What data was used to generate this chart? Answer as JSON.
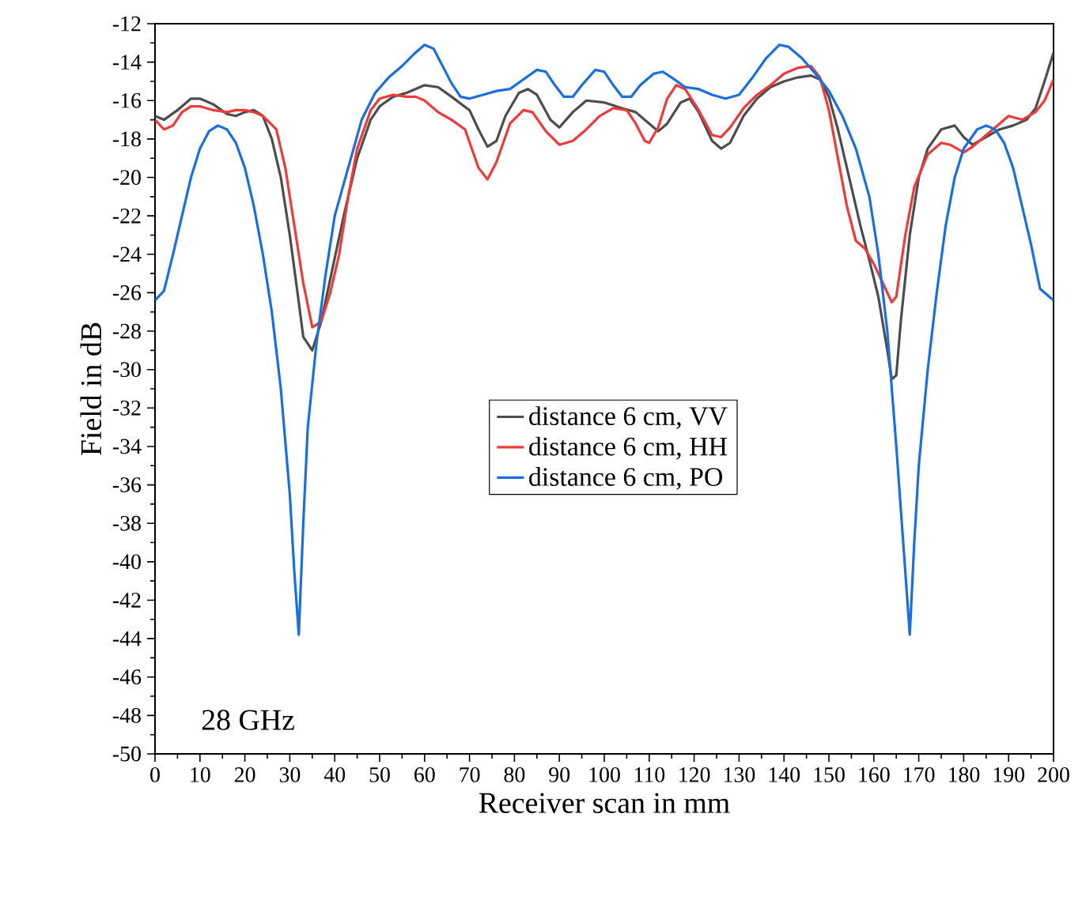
{
  "chart_data": {
    "type": "line",
    "xlabel": "Receiver scan in mm",
    "ylabel": "Field in dB",
    "xlim": [
      0,
      200
    ],
    "ylim": [
      -50,
      -12
    ],
    "xticks": [
      0,
      10,
      20,
      30,
      40,
      50,
      60,
      70,
      80,
      90,
      100,
      110,
      120,
      130,
      140,
      150,
      160,
      170,
      180,
      190,
      200
    ],
    "yticks": [
      -50,
      -48,
      -46,
      -44,
      -42,
      -40,
      -38,
      -36,
      -34,
      -32,
      -30,
      -28,
      -26,
      -24,
      -22,
      -20,
      -18,
      -16,
      -14,
      -12
    ],
    "legend": "center",
    "grid": false,
    "marker": "none",
    "line_style": "solid",
    "annotations": [
      "28 GHz"
    ],
    "series": [
      {
        "name": "distance 6 cm, VV",
        "color": "#4d4d4d",
        "x": [
          0,
          2,
          5,
          8,
          10,
          13,
          16,
          18,
          20,
          22,
          24,
          26,
          28,
          30,
          32,
          33,
          35,
          37,
          42,
          45,
          48,
          50,
          53,
          56,
          60,
          63,
          66,
          70,
          72,
          74,
          76,
          78,
          81,
          83,
          85,
          88,
          90,
          93,
          96,
          100,
          104,
          107,
          110,
          112,
          114,
          117,
          119,
          121,
          124,
          126,
          128,
          131,
          134,
          137,
          140,
          143,
          146,
          148,
          150,
          152,
          155,
          157,
          159,
          161,
          163,
          164,
          165,
          166,
          168,
          170,
          172,
          175,
          178,
          180,
          182,
          185,
          188,
          191,
          194,
          196,
          198,
          200
        ],
        "values": [
          -16.8,
          -17.0,
          -16.5,
          -15.9,
          -15.9,
          -16.2,
          -16.7,
          -16.8,
          -16.6,
          -16.5,
          -16.8,
          -18,
          -20,
          -23,
          -26.5,
          -28.3,
          -29,
          -27.5,
          -22,
          -19,
          -17,
          -16.3,
          -15.8,
          -15.6,
          -15.2,
          -15.3,
          -15.8,
          -16.5,
          -17.5,
          -18.4,
          -18.1,
          -16.8,
          -15.6,
          -15.4,
          -15.7,
          -17,
          -17.4,
          -16.6,
          -16.0,
          -16.1,
          -16.4,
          -16.6,
          -17.2,
          -17.6,
          -17.2,
          -16.1,
          -15.9,
          -16.6,
          -18.1,
          -18.5,
          -18.2,
          -16.8,
          -15.9,
          -15.3,
          -15.0,
          -14.8,
          -14.7,
          -14.9,
          -15.8,
          -17.5,
          -20.5,
          -22.5,
          -24.3,
          -26.2,
          -29,
          -30.5,
          -30.3,
          -27.5,
          -23,
          -20,
          -18.5,
          -17.5,
          -17.3,
          -17.9,
          -18.3,
          -17.9,
          -17.5,
          -17.3,
          -17,
          -16.4,
          -15,
          -13.5
        ]
      },
      {
        "name": "distance 6 cm, HH",
        "color": "#f03a3a",
        "x": [
          0,
          2,
          4,
          6,
          8,
          10,
          13,
          16,
          18,
          20,
          22,
          24,
          27,
          29,
          31,
          33,
          35,
          37,
          39,
          41,
          43,
          45,
          48,
          50,
          53,
          56,
          58,
          60,
          63,
          66,
          69,
          72,
          74,
          76,
          79,
          82,
          84,
          87,
          90,
          93,
          96,
          99,
          102,
          105,
          107,
          109,
          110,
          112,
          114,
          116,
          118,
          121,
          124,
          126,
          128,
          131,
          134,
          137,
          140,
          143,
          146,
          148,
          150,
          152,
          154,
          156,
          158,
          160,
          162,
          164,
          165,
          167,
          169,
          172,
          175,
          177,
          180,
          182,
          185,
          188,
          190,
          193,
          196,
          198,
          200
        ],
        "values": [
          -17.0,
          -17.5,
          -17.3,
          -16.6,
          -16.3,
          -16.3,
          -16.5,
          -16.6,
          -16.5,
          -16.5,
          -16.6,
          -16.8,
          -17.5,
          -19.5,
          -22.5,
          -25.5,
          -27.8,
          -27.5,
          -26,
          -24,
          -21,
          -18.5,
          -16.5,
          -15.9,
          -15.7,
          -15.8,
          -15.8,
          -16.0,
          -16.6,
          -17.0,
          -17.5,
          -19.5,
          -20.1,
          -19.2,
          -17.2,
          -16.5,
          -16.6,
          -17.6,
          -18.3,
          -18.1,
          -17.5,
          -16.8,
          -16.4,
          -16.5,
          -17.2,
          -18.1,
          -18.2,
          -17.4,
          -15.9,
          -15.2,
          -15.4,
          -16.5,
          -17.8,
          -17.9,
          -17.4,
          -16.4,
          -15.7,
          -15.2,
          -14.6,
          -14.3,
          -14.2,
          -14.8,
          -16.5,
          -19,
          -21.5,
          -23.3,
          -23.7,
          -24.5,
          -25.5,
          -26.5,
          -26.2,
          -23,
          -20.5,
          -18.8,
          -18.2,
          -18.3,
          -18.7,
          -18.4,
          -17.8,
          -17.2,
          -16.8,
          -17,
          -16.6,
          -16,
          -14.9
        ]
      },
      {
        "name": "distance 6 cm, PO",
        "color": "#1a6fe0",
        "x": [
          0,
          2,
          4,
          6,
          8,
          10,
          12,
          14,
          16,
          18,
          20,
          22,
          24,
          26,
          28,
          30,
          31,
          32,
          33,
          34,
          36,
          38,
          40,
          43,
          46,
          49,
          52,
          55,
          58,
          60,
          62,
          64,
          66,
          68,
          70,
          73,
          76,
          79,
          82,
          85,
          87,
          89,
          91,
          93,
          95,
          98,
          100,
          102,
          104,
          106,
          108,
          111,
          113,
          115,
          118,
          121,
          124,
          127,
          130,
          133,
          136,
          139,
          141,
          144,
          147,
          150,
          153,
          156,
          159,
          161,
          163,
          165,
          167,
          168,
          169,
          170,
          172,
          174,
          176,
          178,
          180,
          183,
          185,
          187,
          189,
          191,
          193,
          195,
          197,
          199,
          200
        ],
        "values": [
          -26.4,
          -25.9,
          -24,
          -22,
          -20,
          -18.5,
          -17.6,
          -17.3,
          -17.5,
          -18.2,
          -19.5,
          -21.5,
          -24,
          -27,
          -31,
          -36.5,
          -40.5,
          -43.8,
          -38,
          -33,
          -28.5,
          -25,
          -22,
          -19.5,
          -17,
          -15.6,
          -14.8,
          -14.2,
          -13.5,
          -13.1,
          -13.3,
          -14.2,
          -15.1,
          -15.8,
          -15.9,
          -15.7,
          -15.5,
          -15.4,
          -14.9,
          -14.4,
          -14.5,
          -15.2,
          -15.8,
          -15.8,
          -15.2,
          -14.4,
          -14.5,
          -15.2,
          -15.8,
          -15.8,
          -15.2,
          -14.6,
          -14.5,
          -14.8,
          -15.3,
          -15.4,
          -15.7,
          -15.9,
          -15.7,
          -14.8,
          -13.8,
          -13.1,
          -13.2,
          -13.8,
          -14.6,
          -15.5,
          -16.8,
          -18.5,
          -21,
          -24,
          -28,
          -34,
          -40.5,
          -43.8,
          -39,
          -35,
          -30,
          -26,
          -22.5,
          -20,
          -18.5,
          -17.5,
          -17.3,
          -17.5,
          -18.2,
          -19.5,
          -21.5,
          -23.5,
          -25.8,
          -26.2,
          -26.4
        ]
      }
    ]
  }
}
